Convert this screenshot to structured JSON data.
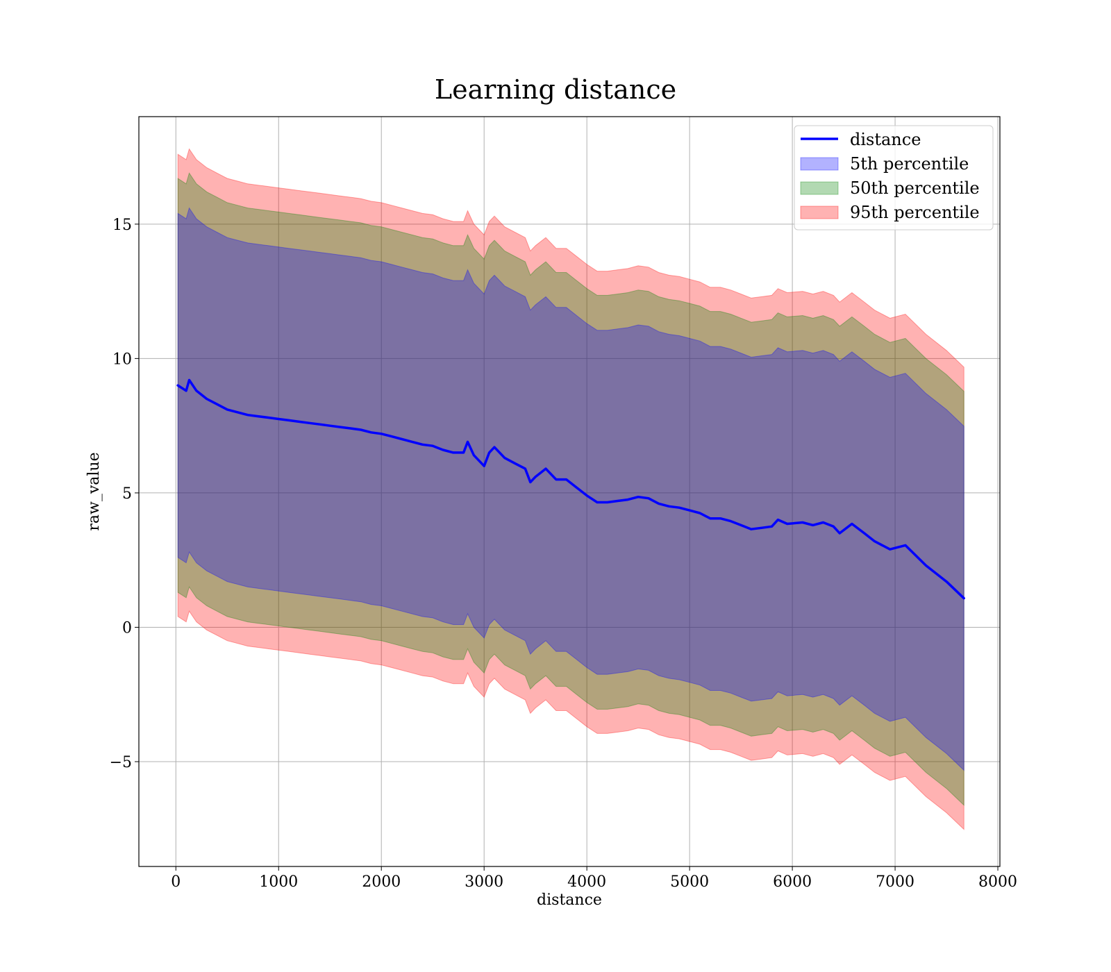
{
  "chart_data": {
    "type": "area",
    "title": "Learning distance",
    "xlabel": "distance",
    "ylabel": "raw_value",
    "xlim": [
      -360,
      8020
    ],
    "ylim": [
      -8.9,
      19.0
    ],
    "xticks": [
      0,
      1000,
      2000,
      3000,
      4000,
      5000,
      6000,
      7000,
      8000
    ],
    "xtick_labels": [
      "0",
      "1000",
      "2000",
      "3000",
      "4000",
      "5000",
      "6000",
      "7000",
      "8000"
    ],
    "yticks": [
      -5,
      0,
      5,
      10,
      15
    ],
    "ytick_labels": [
      "−5",
      "0",
      "5",
      "10",
      "15"
    ],
    "grid": true,
    "legend_position": "top-right",
    "legend": [
      "distance",
      "5th percentile",
      "50th percentile",
      "95th percentile"
    ],
    "colors": {
      "line": "#0000ff",
      "band_5th": "#0000ff",
      "band_50th": "#008000",
      "band_95th": "#ff0000",
      "band_opacity": 0.3
    },
    "x": [
      20,
      100,
      130,
      200,
      300,
      400,
      500,
      600,
      700,
      800,
      900,
      1000,
      1100,
      1200,
      1300,
      1400,
      1500,
      1600,
      1700,
      1800,
      1900,
      2000,
      2100,
      2200,
      2300,
      2400,
      2500,
      2600,
      2700,
      2800,
      2840,
      2900,
      3000,
      3050,
      3100,
      3200,
      3300,
      3400,
      3450,
      3500,
      3600,
      3700,
      3800,
      3900,
      4000,
      4100,
      4200,
      4300,
      4400,
      4500,
      4600,
      4700,
      4800,
      4900,
      5000,
      5100,
      5200,
      5300,
      5400,
      5500,
      5600,
      5700,
      5800,
      5860,
      5950,
      6100,
      6200,
      6300,
      6400,
      6460,
      6580,
      6700,
      6800,
      6950,
      7100,
      7300,
      7500,
      7670
    ],
    "series": [
      {
        "name": "distance",
        "values": [
          9.0,
          8.8,
          9.2,
          8.8,
          8.5,
          8.3,
          8.1,
          8.0,
          7.9,
          7.85,
          7.8,
          7.75,
          7.7,
          7.65,
          7.6,
          7.55,
          7.5,
          7.45,
          7.4,
          7.35,
          7.25,
          7.2,
          7.1,
          7.0,
          6.9,
          6.8,
          6.75,
          6.6,
          6.5,
          6.5,
          6.9,
          6.4,
          6.0,
          6.5,
          6.7,
          6.3,
          6.1,
          5.9,
          5.4,
          5.6,
          5.9,
          5.5,
          5.5,
          5.2,
          4.9,
          4.65,
          4.65,
          4.7,
          4.75,
          4.85,
          4.8,
          4.6,
          4.5,
          4.45,
          4.35,
          4.25,
          4.05,
          4.05,
          3.95,
          3.8,
          3.65,
          3.7,
          3.75,
          4.0,
          3.85,
          3.9,
          3.8,
          3.9,
          3.75,
          3.5,
          3.85,
          3.5,
          3.2,
          2.9,
          3.05,
          2.3,
          1.7,
          1.08
        ]
      },
      {
        "name": "5th percentile",
        "lower_offset": 6.4,
        "upper_offset": 6.4
      },
      {
        "name": "50th percentile",
        "lower_offset": 7.7,
        "upper_offset": 7.7
      },
      {
        "name": "95th percentile",
        "lower_offset": 8.6,
        "upper_offset": 8.6
      }
    ]
  }
}
